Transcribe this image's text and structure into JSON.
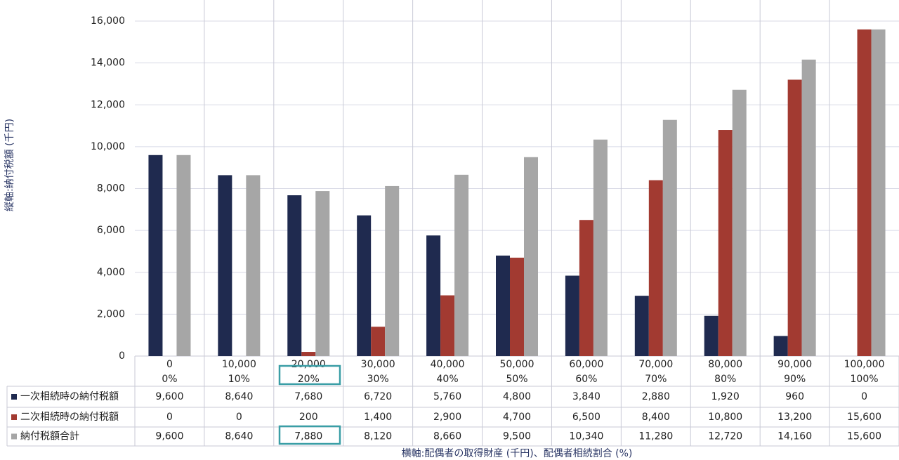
{
  "chart_data": {
    "type": "bar",
    "y_label": "縦軸:納付税額 (千円)",
    "x_label": "横軸:配偶者の取得財産 (千円)、配偶者相続割合 (%)",
    "categories": [
      "0",
      "10,000",
      "20,000",
      "30,000",
      "40,000",
      "50,000",
      "60,000",
      "70,000",
      "80,000",
      "90,000",
      "100,000"
    ],
    "shares": [
      "0%",
      "10%",
      "20%",
      "30%",
      "40%",
      "50%",
      "60%",
      "70%",
      "80%",
      "90%",
      "100%"
    ],
    "series": [
      {
        "name": "一次相続時の納付税額",
        "color": "#1f2a4f",
        "values": [
          9600,
          8640,
          7680,
          6720,
          5760,
          4800,
          3840,
          2880,
          1920,
          960,
          0
        ],
        "value_labels": [
          "9,600",
          "8,640",
          "7,680",
          "6,720",
          "5,760",
          "4,800",
          "3,840",
          "2,880",
          "1,920",
          "960",
          "0"
        ]
      },
      {
        "name": "二次相続時の納付税額",
        "color": "#a23a31",
        "values": [
          0,
          0,
          200,
          1400,
          2900,
          4700,
          6500,
          8400,
          10800,
          13200,
          15600
        ],
        "value_labels": [
          "0",
          "0",
          "200",
          "1,400",
          "2,900",
          "4,700",
          "6,500",
          "8,400",
          "10,800",
          "13,200",
          "15,600"
        ]
      },
      {
        "name": "納付税額合計",
        "color": "#a6a6a6",
        "values": [
          9600,
          8640,
          7880,
          8120,
          8660,
          9500,
          10340,
          11280,
          12720,
          14160,
          15600
        ],
        "value_labels": [
          "9,600",
          "8,640",
          "7,880",
          "8,120",
          "8,660",
          "9,500",
          "10,340",
          "11,280",
          "12,720",
          "14,160",
          "15,600"
        ]
      }
    ],
    "ylim": [
      0,
      16000
    ],
    "yticks": [
      0,
      {
        "value": 2000,
        "label": "2,000"
      },
      {
        "value": 4000,
        "label": "4,000"
      },
      {
        "value": 6000,
        "label": "6,000"
      },
      {
        "value": 8000,
        "label": "8,000"
      },
      {
        "value": 10000,
        "label": "10,000"
      },
      {
        "value": 12000,
        "label": "12,000"
      },
      {
        "value": 14000,
        "label": "14,000"
      },
      {
        "value": 16000,
        "label": "16,000"
      }
    ],
    "grid": true
  }
}
